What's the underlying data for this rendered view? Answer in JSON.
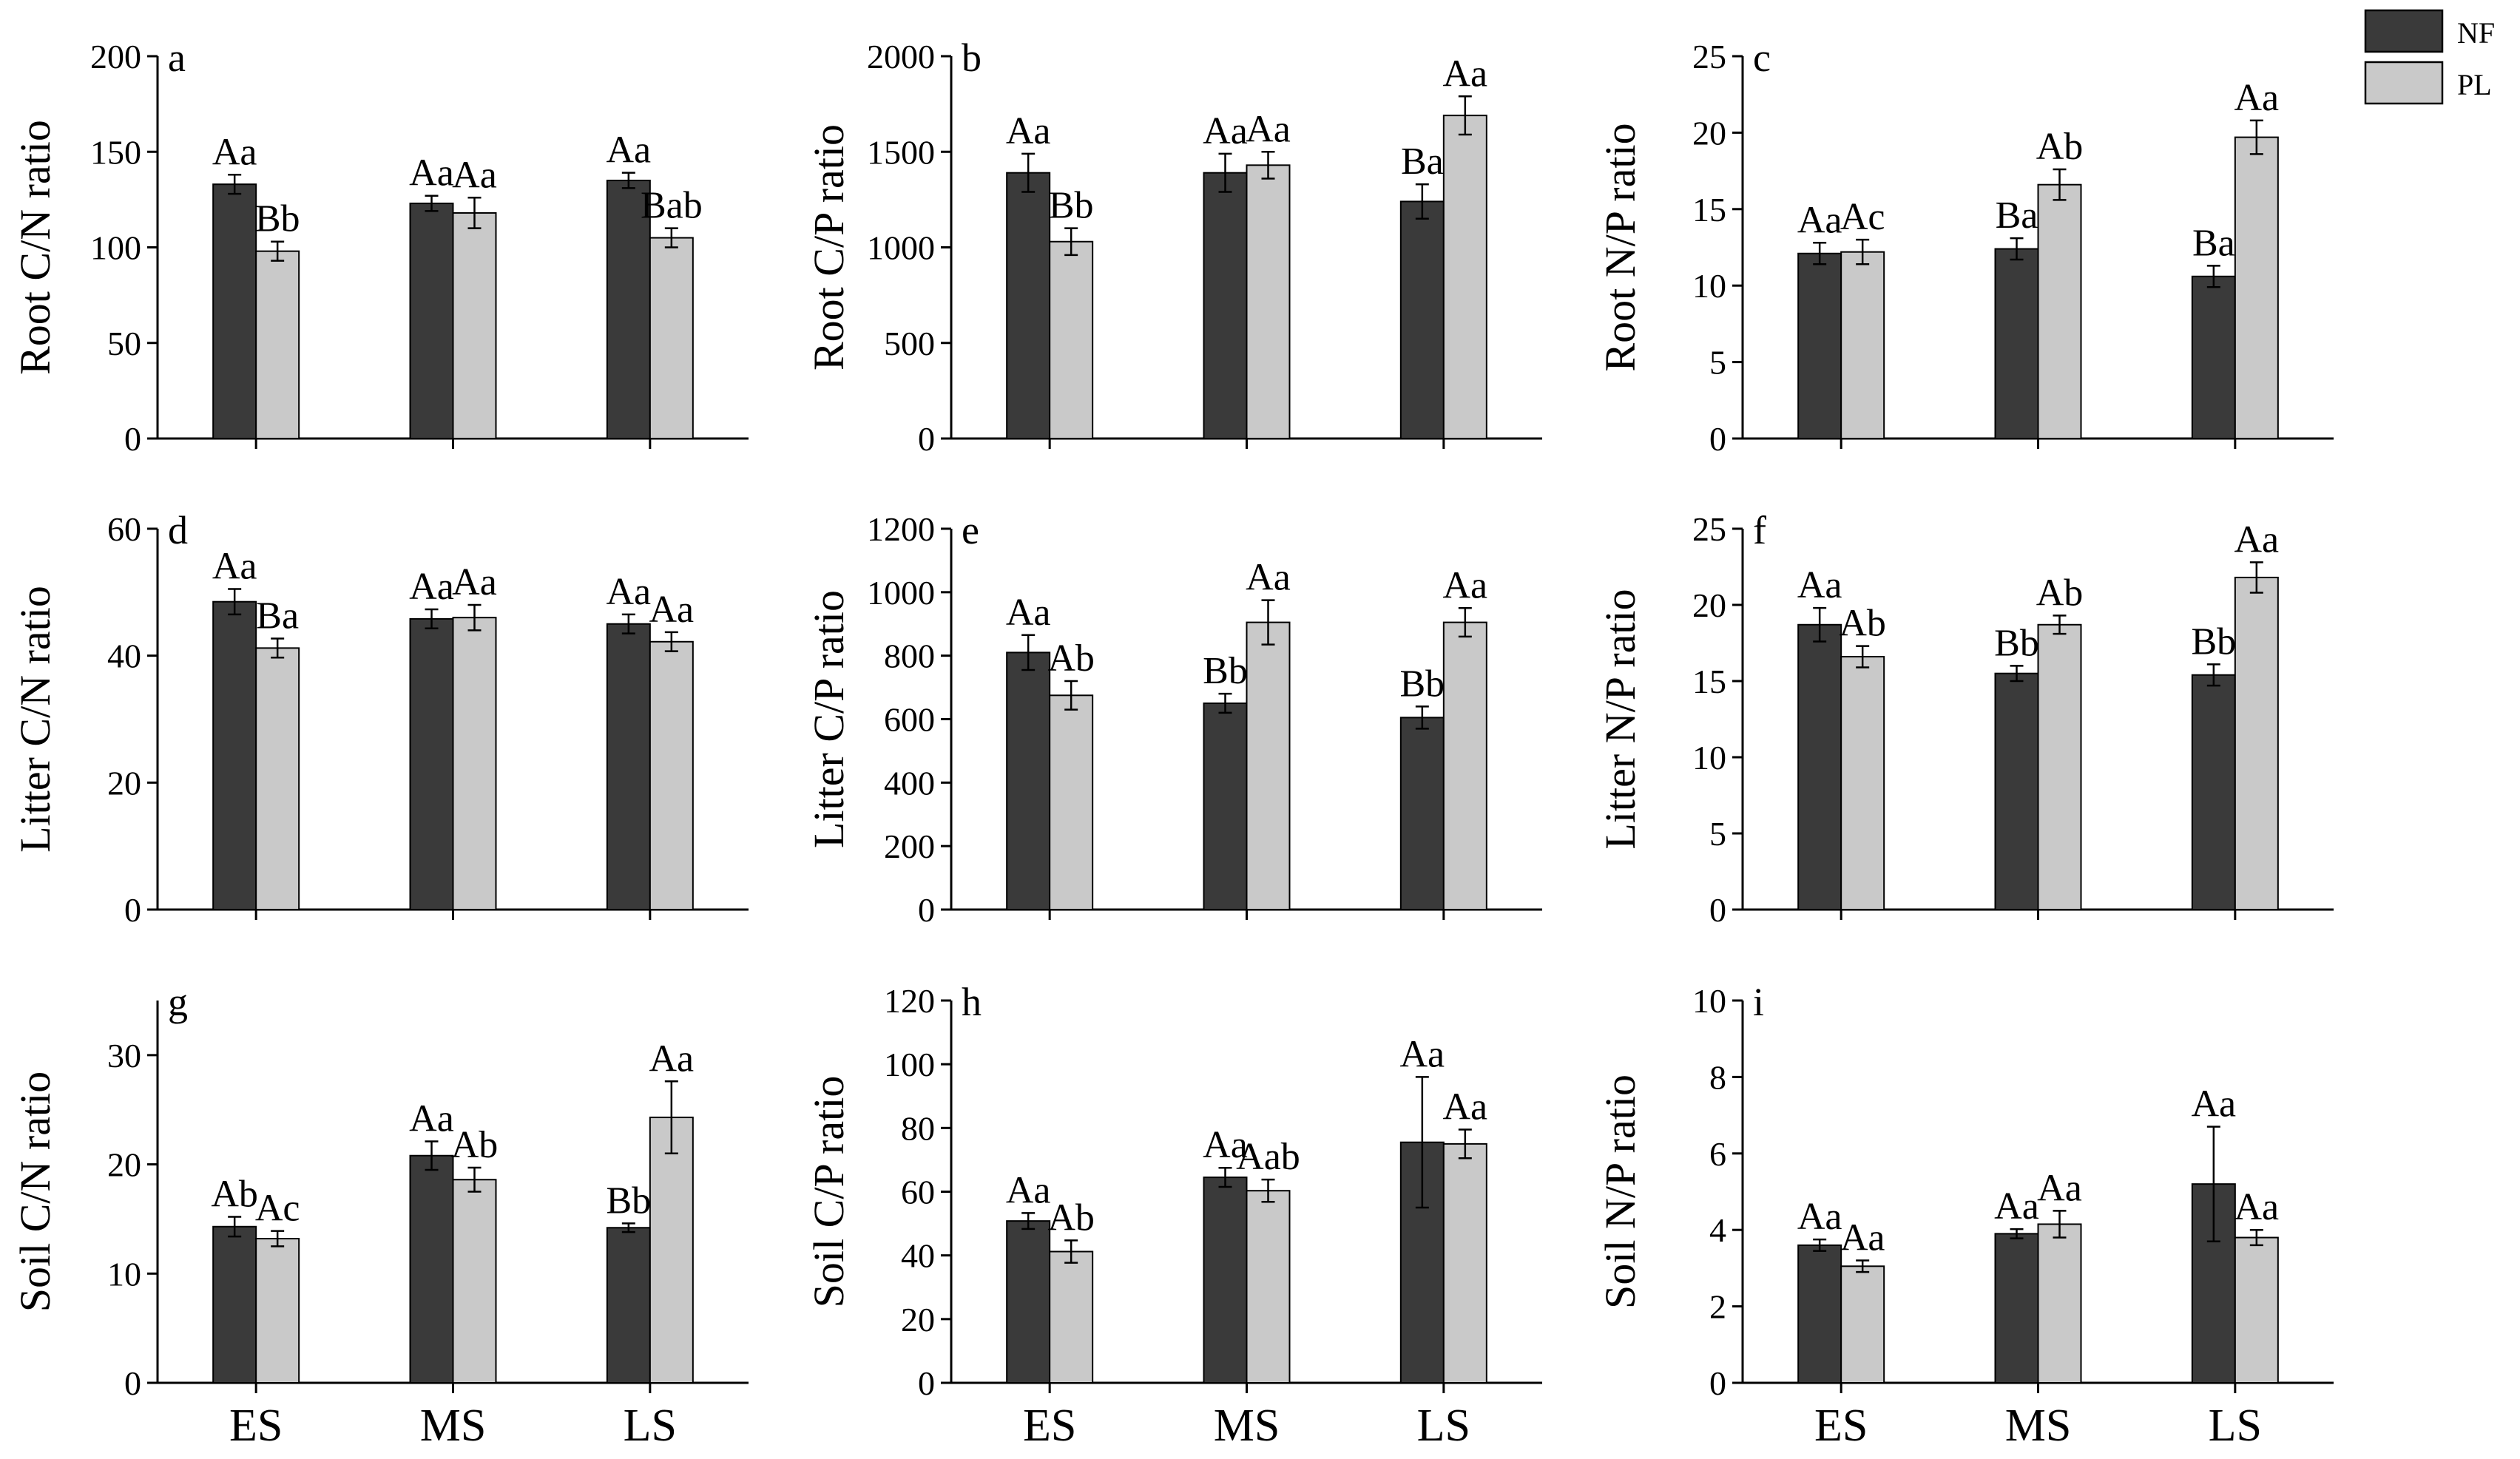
{
  "colors": {
    "NF": "#3a3a3a",
    "PL": "#c9c9c9",
    "axis": "#000000"
  },
  "legend": [
    {
      "key": "NF",
      "label": "NF"
    },
    {
      "key": "PL",
      "label": "PL"
    }
  ],
  "chart_data": [
    {
      "id": "a",
      "panel_label": "a",
      "type": "bar",
      "ylabel": "Root C/N ratio",
      "ylim": [
        0,
        200
      ],
      "yticks": [
        0,
        50,
        100,
        150,
        200
      ],
      "categories": [
        "ES",
        "MS",
        "LS"
      ],
      "show_categories": false,
      "series": [
        {
          "name": "NF",
          "values": [
            133,
            123,
            135
          ],
          "errors": [
            5,
            4,
            4
          ],
          "labels": [
            "Aa",
            "Aa",
            "Aa"
          ]
        },
        {
          "name": "PL",
          "values": [
            98,
            118,
            105
          ],
          "errors": [
            5,
            8,
            5
          ],
          "labels": [
            "Bb",
            "Aa",
            "Bab"
          ]
        }
      ]
    },
    {
      "id": "b",
      "panel_label": "b",
      "type": "bar",
      "ylabel": "Root C/P ratio",
      "ylim": [
        0,
        2000
      ],
      "yticks": [
        0,
        500,
        1000,
        1500,
        2000
      ],
      "categories": [
        "ES",
        "MS",
        "LS"
      ],
      "show_categories": false,
      "series": [
        {
          "name": "NF",
          "values": [
            1390,
            1390,
            1240
          ],
          "errors": [
            100,
            100,
            90
          ],
          "labels": [
            "Aa",
            "Aa",
            "Ba"
          ]
        },
        {
          "name": "PL",
          "values": [
            1030,
            1430,
            1690
          ],
          "errors": [
            70,
            70,
            100
          ],
          "labels": [
            "Bb",
            "Aa",
            "Aa"
          ]
        }
      ]
    },
    {
      "id": "c",
      "panel_label": "c",
      "type": "bar",
      "ylabel": "Root N/P ratio",
      "ylim": [
        0,
        25
      ],
      "yticks": [
        0,
        5,
        10,
        15,
        20,
        25
      ],
      "categories": [
        "ES",
        "MS",
        "LS"
      ],
      "show_categories": false,
      "series": [
        {
          "name": "NF",
          "values": [
            12.1,
            12.4,
            10.6
          ],
          "errors": [
            0.7,
            0.7,
            0.7
          ],
          "labels": [
            "Aa",
            "Ba",
            "Ba"
          ]
        },
        {
          "name": "PL",
          "values": [
            12.2,
            16.6,
            19.7
          ],
          "errors": [
            0.8,
            1.0,
            1.1
          ],
          "labels": [
            "Ac",
            "Ab",
            "Aa"
          ]
        }
      ]
    },
    {
      "id": "d",
      "panel_label": "d",
      "type": "bar",
      "ylabel": "Litter C/N ratio",
      "ylim": [
        0,
        60
      ],
      "yticks": [
        0,
        20,
        40,
        60
      ],
      "categories": [
        "ES",
        "MS",
        "LS"
      ],
      "show_categories": false,
      "series": [
        {
          "name": "NF",
          "values": [
            48.5,
            45.8,
            45.0
          ],
          "errors": [
            2.0,
            1.5,
            1.5
          ],
          "labels": [
            "Aa",
            "Aa",
            "Aa"
          ]
        },
        {
          "name": "PL",
          "values": [
            41.2,
            46.0,
            42.2
          ],
          "errors": [
            1.5,
            2.0,
            1.5
          ],
          "labels": [
            "Ba",
            "Aa",
            "Aa"
          ]
        }
      ]
    },
    {
      "id": "e",
      "panel_label": "e",
      "type": "bar",
      "ylabel": "Litter C/P ratio",
      "ylim": [
        0,
        1200
      ],
      "yticks": [
        0,
        200,
        400,
        600,
        800,
        1000,
        1200
      ],
      "categories": [
        "ES",
        "MS",
        "LS"
      ],
      "show_categories": false,
      "series": [
        {
          "name": "NF",
          "values": [
            810,
            650,
            605
          ],
          "errors": [
            55,
            30,
            35
          ],
          "labels": [
            "Aa",
            "Bb",
            "Bb"
          ]
        },
        {
          "name": "PL",
          "values": [
            675,
            905,
            905
          ],
          "errors": [
            45,
            70,
            45
          ],
          "labels": [
            "Ab",
            "Aa",
            "Aa"
          ]
        }
      ]
    },
    {
      "id": "f",
      "panel_label": "f",
      "type": "bar",
      "ylabel": "Litter N/P ratio",
      "ylim": [
        0,
        25
      ],
      "yticks": [
        0,
        5,
        10,
        15,
        20,
        25
      ],
      "categories": [
        "ES",
        "MS",
        "LS"
      ],
      "show_categories": false,
      "series": [
        {
          "name": "NF",
          "values": [
            18.7,
            15.5,
            15.4
          ],
          "errors": [
            1.1,
            0.5,
            0.7
          ],
          "labels": [
            "Aa",
            "Bb",
            "Bb"
          ]
        },
        {
          "name": "PL",
          "values": [
            16.6,
            18.7,
            21.8
          ],
          "errors": [
            0.7,
            0.6,
            1.0
          ],
          "labels": [
            "Ab",
            "Ab",
            "Aa"
          ]
        }
      ]
    },
    {
      "id": "g",
      "panel_label": "g",
      "type": "bar",
      "ylabel": "Soil C/N ratio",
      "ylim": [
        0,
        35
      ],
      "yticks": [
        0,
        10,
        20,
        30
      ],
      "categories": [
        "ES",
        "MS",
        "LS"
      ],
      "show_categories": true,
      "series": [
        {
          "name": "NF",
          "values": [
            14.3,
            20.8,
            14.2
          ],
          "errors": [
            0.9,
            1.3,
            0.4
          ],
          "labels": [
            "Ab",
            "Aa",
            "Bb"
          ]
        },
        {
          "name": "PL",
          "values": [
            13.2,
            18.6,
            24.3
          ],
          "errors": [
            0.7,
            1.1,
            3.3
          ],
          "labels": [
            "Ac",
            "Ab",
            "Aa"
          ]
        }
      ]
    },
    {
      "id": "h",
      "panel_label": "h",
      "type": "bar",
      "ylabel": "Soil C/P ratio",
      "ylim": [
        0,
        120
      ],
      "yticks": [
        0,
        20,
        40,
        60,
        80,
        100,
        120
      ],
      "categories": [
        "ES",
        "MS",
        "LS"
      ],
      "show_categories": true,
      "series": [
        {
          "name": "NF",
          "values": [
            50.8,
            64.5,
            75.5
          ],
          "errors": [
            2.5,
            3.0,
            20.5
          ],
          "labels": [
            "Aa",
            "Aa",
            "Aa"
          ]
        },
        {
          "name": "PL",
          "values": [
            41.2,
            60.3,
            75.0
          ],
          "errors": [
            3.5,
            3.5,
            4.5
          ],
          "labels": [
            "Ab",
            "Aab",
            "Aa"
          ]
        }
      ]
    },
    {
      "id": "i",
      "panel_label": "i",
      "type": "bar",
      "ylabel": "Soil N/P ratio",
      "ylim": [
        0,
        10
      ],
      "yticks": [
        0,
        2,
        4,
        6,
        8,
        10
      ],
      "categories": [
        "ES",
        "MS",
        "LS"
      ],
      "show_categories": true,
      "series": [
        {
          "name": "NF",
          "values": [
            3.6,
            3.9,
            5.2
          ],
          "errors": [
            0.15,
            0.12,
            1.5
          ],
          "labels": [
            "Aa",
            "Aa",
            "Aa"
          ]
        },
        {
          "name": "PL",
          "values": [
            3.05,
            4.15,
            3.8
          ],
          "errors": [
            0.15,
            0.35,
            0.2
          ],
          "labels": [
            "Aa",
            "Aa",
            "Aa"
          ]
        }
      ]
    }
  ]
}
